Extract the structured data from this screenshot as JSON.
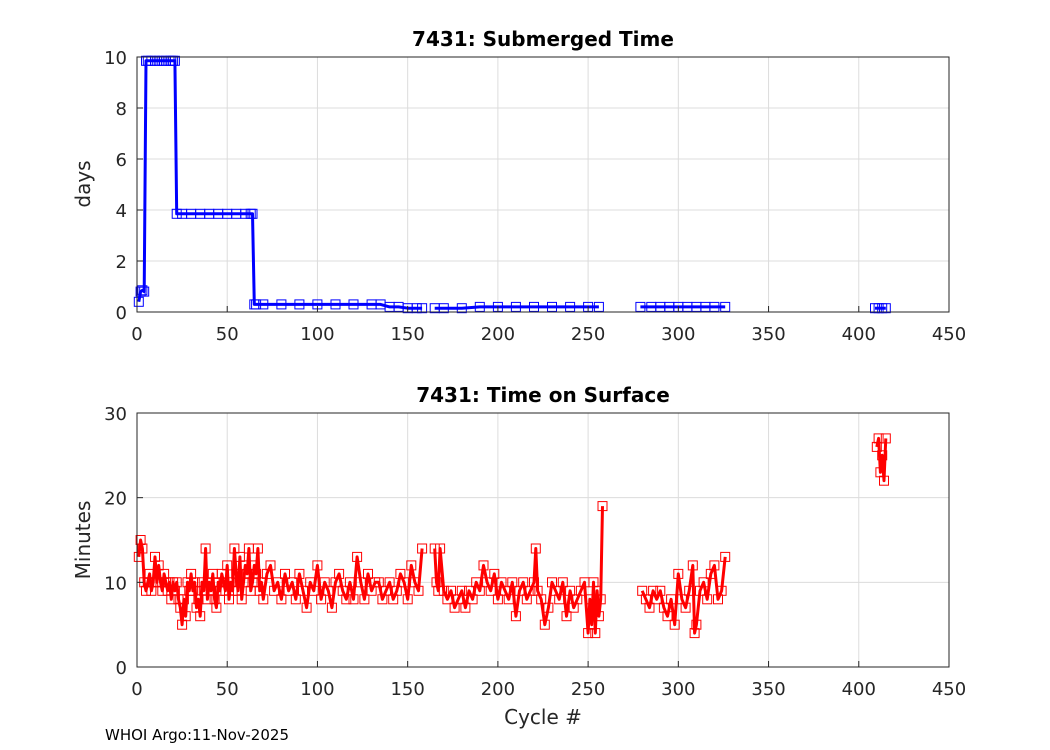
{
  "chart_data": [
    {
      "type": "line",
      "title": "7431: Submerged Time",
      "xlabel": "",
      "ylabel": "days",
      "xlim": [
        0,
        450
      ],
      "ylim": [
        0,
        10
      ],
      "xticks": [
        "0",
        "50",
        "100",
        "150",
        "200",
        "250",
        "300",
        "350",
        "400",
        "450"
      ],
      "yticks": [
        "0",
        "2",
        "4",
        "6",
        "8",
        "10"
      ],
      "grid": true,
      "color": "#0000ff",
      "marker": "square",
      "segments": [
        {
          "x": [
            1,
            2,
            3,
            4,
            5,
            6,
            8,
            10,
            12,
            14,
            16,
            18,
            19,
            20,
            21,
            22,
            25,
            30,
            35,
            40,
            45,
            50,
            55,
            60,
            63,
            64,
            65,
            66,
            70,
            80,
            90,
            100,
            110,
            120,
            130,
            135,
            140,
            145,
            150,
            155,
            158
          ],
          "y": [
            0.4,
            0.8,
            0.85,
            0.8,
            9.85,
            9.85,
            9.85,
            9.85,
            9.85,
            9.85,
            9.85,
            9.85,
            9.85,
            9.85,
            9.85,
            3.85,
            3.85,
            3.85,
            3.85,
            3.85,
            3.85,
            3.85,
            3.85,
            3.85,
            3.85,
            3.85,
            0.3,
            0.3,
            0.3,
            0.3,
            0.3,
            0.3,
            0.3,
            0.3,
            0.3,
            0.3,
            0.2,
            0.2,
            0.15,
            0.15,
            0.15
          ]
        },
        {
          "x": [
            165,
            170,
            180,
            190,
            200,
            210,
            220,
            230,
            240,
            250,
            256
          ],
          "y": [
            0.15,
            0.15,
            0.15,
            0.2,
            0.2,
            0.2,
            0.2,
            0.2,
            0.2,
            0.2,
            0.2
          ]
        },
        {
          "x": [
            279,
            285,
            290,
            295,
            300,
            305,
            310,
            315,
            320,
            326
          ],
          "y": [
            0.2,
            0.2,
            0.2,
            0.2,
            0.2,
            0.2,
            0.2,
            0.2,
            0.2,
            0.2
          ]
        },
        {
          "x": [
            409,
            411,
            413,
            415
          ],
          "y": [
            0.15,
            0.15,
            0.15,
            0.15
          ]
        }
      ]
    },
    {
      "type": "line",
      "title": "7431: Time on Surface",
      "xlabel": "Cycle #",
      "ylabel": "Minutes",
      "xlim": [
        0,
        450
      ],
      "ylim": [
        0,
        30
      ],
      "xticks": [
        "0",
        "50",
        "100",
        "150",
        "200",
        "250",
        "300",
        "350",
        "400",
        "450"
      ],
      "yticks": [
        "0",
        "10",
        "20",
        "30"
      ],
      "grid": true,
      "color": "#ff0000",
      "marker": "square",
      "segments": [
        {
          "x": [
            1,
            2,
            3,
            4,
            5,
            6,
            7,
            8,
            9,
            10,
            11,
            12,
            13,
            14,
            15,
            16,
            17,
            18,
            19,
            20,
            21,
            22,
            23,
            24,
            25,
            26,
            27,
            28,
            29,
            30,
            31,
            32,
            33,
            34,
            35,
            36,
            37,
            38,
            39,
            40,
            41,
            42,
            43,
            44,
            45,
            46,
            47,
            48,
            49,
            50,
            51,
            52,
            53,
            54,
            55,
            56,
            57,
            58,
            59,
            60,
            61,
            62,
            63,
            64,
            65,
            66,
            67,
            68,
            69,
            70,
            72,
            74,
            76,
            78,
            80,
            82,
            84,
            86,
            88,
            90,
            92,
            94,
            96,
            98,
            100,
            102,
            104,
            106,
            108,
            110,
            112,
            114,
            116,
            118,
            120,
            122,
            124,
            126,
            128,
            130,
            132,
            134,
            136,
            138,
            140,
            142,
            144,
            146,
            148,
            150,
            152,
            154,
            156,
            158
          ],
          "y": [
            13,
            15,
            14,
            10,
            9,
            10,
            11,
            9,
            10,
            13,
            10,
            12,
            10,
            9,
            11,
            10,
            9,
            10,
            8,
            10,
            9,
            10,
            8,
            7,
            5,
            8,
            6,
            10,
            9,
            11,
            9,
            10,
            7,
            8,
            6,
            10,
            9,
            14,
            8,
            10,
            9,
            11,
            8,
            7,
            10,
            9,
            11,
            10,
            9,
            12,
            8,
            10,
            9,
            14,
            11,
            9,
            13,
            8,
            10,
            12,
            11,
            14,
            9,
            10,
            12,
            11,
            14,
            9,
            10,
            8,
            11,
            12,
            9,
            10,
            8,
            11,
            9,
            10,
            8,
            11,
            9,
            7,
            10,
            9,
            12,
            8,
            10,
            9,
            7,
            10,
            11,
            9,
            8,
            10,
            8,
            13,
            10,
            8,
            11,
            9,
            10,
            10,
            8,
            9,
            10,
            8,
            9,
            11,
            10,
            8,
            12,
            10,
            9,
            14
          ]
        },
        {
          "x": [
            165,
            166,
            167,
            168,
            170,
            172,
            174,
            176,
            178,
            180,
            182,
            184,
            186,
            188,
            190,
            192,
            194,
            196,
            198,
            200,
            202,
            204,
            206,
            208,
            210,
            212,
            214,
            216,
            218,
            220,
            221,
            222,
            224,
            226,
            228,
            230,
            232,
            234,
            236,
            238,
            240,
            242,
            244,
            246,
            248,
            250,
            251,
            252,
            253,
            254,
            255,
            256,
            257,
            258
          ],
          "y": [
            14,
            10,
            9,
            14,
            9,
            8,
            9,
            7,
            8,
            9,
            7,
            9,
            8,
            10,
            9,
            12,
            10,
            9,
            11,
            8,
            10,
            9,
            8,
            10,
            6,
            9,
            10,
            8,
            9,
            10,
            14,
            9,
            8,
            5,
            7,
            10,
            9,
            8,
            10,
            6,
            9,
            7,
            8,
            9,
            10,
            4,
            8,
            5,
            10,
            4,
            9,
            6,
            8,
            19
          ]
        },
        {
          "x": [
            280,
            282,
            284,
            286,
            288,
            290,
            292,
            294,
            296,
            298,
            300,
            302,
            304,
            306,
            308,
            309,
            310,
            312,
            314,
            316,
            318,
            320,
            322,
            324,
            326
          ],
          "y": [
            9,
            8,
            7,
            9,
            8,
            9,
            7,
            6,
            8,
            5,
            11,
            8,
            7,
            9,
            12,
            4,
            5,
            9,
            10,
            8,
            11,
            12,
            8,
            9,
            13
          ]
        },
        {
          "x": [
            410,
            411,
            412,
            413,
            414,
            415
          ],
          "y": [
            26,
            27,
            23,
            25,
            22,
            27
          ]
        }
      ]
    }
  ],
  "footer": {
    "text": "WHOI Argo:11-Nov-2025"
  }
}
